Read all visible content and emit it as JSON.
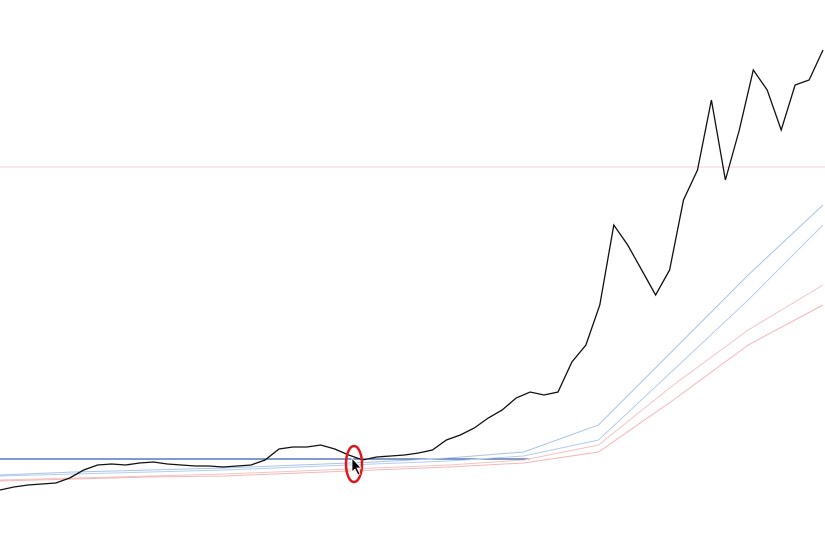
{
  "chart_data": {
    "type": "line",
    "ylim": [
      0,
      556
    ],
    "series": [
      {
        "color": "#f2b8b8",
        "values": [
          75,
          77,
          79,
          80,
          83,
          86,
          89,
          93,
          104,
          156,
          211,
          251
        ]
      },
      {
        "color": "#f2c4c4",
        "values": [
          76,
          78,
          80,
          82,
          85,
          88,
          91,
          96,
          111,
          171,
          226,
          271
        ]
      },
      {
        "color": "#b4cdee",
        "values": [
          80,
          82,
          84,
          86,
          89,
          92,
          95,
          100,
          116,
          186,
          256,
          331
        ]
      },
      {
        "color": "#a9c3ea",
        "values": [
          81,
          84,
          86,
          88,
          91,
          94,
          98,
          104,
          131,
          206,
          281,
          351
        ]
      },
      {
        "color": "#111111",
        "values": [
          66,
          69,
          71,
          72,
          73,
          78,
          86,
          91,
          92,
          91,
          93,
          94,
          92,
          91,
          90,
          90,
          89,
          90,
          91,
          96,
          107,
          109,
          109,
          111,
          107,
          101,
          96,
          99,
          100,
          101,
          103,
          106,
          116,
          121,
          128,
          138,
          146,
          158,
          164,
          161,
          164,
          194,
          211,
          251,
          331,
          311,
          286,
          261,
          286,
          356,
          386,
          456,
          376,
          426,
          486,
          466,
          426,
          471,
          476,
          506
        ]
      }
    ]
  }
}
